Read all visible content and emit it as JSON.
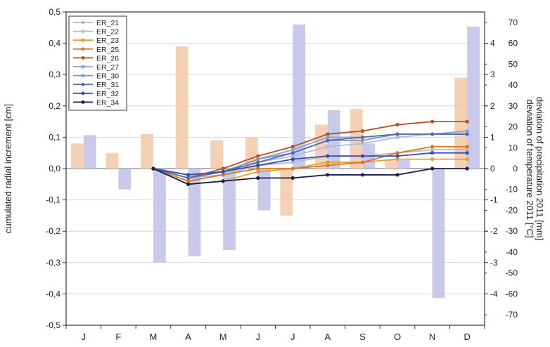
{
  "chart_data": {
    "type": "line",
    "title": "",
    "x_ticks": [
      "J",
      "F",
      "M",
      "A",
      "M",
      "J",
      "J",
      "A",
      "S",
      "O",
      "N",
      "D"
    ],
    "y_left": {
      "label": "cumulated radial increment [cm]",
      "ylim": [
        -0.5,
        0.5
      ],
      "ticks": [
        "-0,5",
        "-0,4",
        "-0,3",
        "-0,2",
        "-0,1",
        "0,0",
        "0,1",
        "0,2",
        "0,3",
        "0,4",
        "0,5"
      ],
      "tick_values": [
        -0.5,
        -0.4,
        -0.3,
        -0.2,
        -0.1,
        0.0,
        0.1,
        0.2,
        0.3,
        0.4,
        0.5
      ]
    },
    "y_right_temperature": {
      "label": "deviation of temperature 2011 [°C]",
      "ylim": [
        -5,
        5
      ],
      "ticks": [
        "-4",
        "-3",
        "-2",
        "-1",
        "0",
        "1",
        "2",
        "3",
        "4"
      ],
      "tick_values": [
        -4,
        -3,
        -2,
        -1,
        0,
        1,
        2,
        3,
        4
      ]
    },
    "y_right_precipitation": {
      "label": "deviation of precipitation 2011 [mm]",
      "ylim": [
        -75,
        75
      ],
      "ticks": [
        "-70",
        "-60",
        "-50",
        "-40",
        "-30",
        "-20",
        "-10",
        "0",
        "10",
        "20",
        "30",
        "40",
        "50",
        "60",
        "70"
      ],
      "tick_values": [
        -70,
        -60,
        -50,
        -40,
        -30,
        -20,
        -10,
        0,
        10,
        20,
        30,
        40,
        50,
        60,
        70
      ]
    },
    "line_x": [
      "M",
      "A",
      "M",
      "J",
      "J",
      "A",
      "S",
      "O",
      "N",
      "D"
    ],
    "series": [
      {
        "name": "ER_21",
        "color": "#b8b8c4",
        "values": [
          0.0,
          -0.03,
          -0.02,
          0.01,
          0.02,
          0.04,
          0.04,
          0.05,
          0.06,
          0.06
        ]
      },
      {
        "name": "ER_22",
        "color": "#a9bde0",
        "values": [
          0.0,
          -0.03,
          -0.01,
          0.02,
          0.04,
          0.07,
          0.08,
          0.1,
          0.11,
          0.11
        ]
      },
      {
        "name": "ER_23",
        "color": "#e0a030",
        "values": [
          0.0,
          -0.05,
          -0.04,
          -0.01,
          0.0,
          0.02,
          0.02,
          0.03,
          0.03,
          0.03
        ]
      },
      {
        "name": "ER_25",
        "color": "#d9781e",
        "values": [
          0.0,
          -0.04,
          -0.02,
          0.0,
          0.0,
          0.01,
          0.02,
          0.05,
          0.07,
          0.07
        ]
      },
      {
        "name": "ER_26",
        "color": "#b8501c",
        "values": [
          0.0,
          -0.03,
          0.0,
          0.04,
          0.07,
          0.11,
          0.12,
          0.14,
          0.15,
          0.15
        ]
      },
      {
        "name": "ER_27",
        "color": "#7fa6e0",
        "values": [
          0.0,
          -0.02,
          -0.01,
          0.03,
          0.06,
          0.1,
          0.1,
          0.11,
          0.11,
          0.12
        ]
      },
      {
        "name": "ER_30",
        "color": "#8094c4",
        "values": [
          0.0,
          -0.02,
          -0.01,
          0.03,
          0.05,
          0.09,
          0.09,
          0.11,
          0.11,
          0.11
        ]
      },
      {
        "name": "ER_31",
        "color": "#5a6aa8",
        "values": [
          0.0,
          -0.03,
          -0.01,
          0.02,
          0.05,
          0.09,
          0.1,
          0.11,
          0.11,
          0.11
        ]
      },
      {
        "name": "ER_32",
        "color": "#3050b0",
        "values": [
          0.0,
          -0.02,
          -0.01,
          0.01,
          0.03,
          0.04,
          0.04,
          0.04,
          0.05,
          0.05
        ]
      },
      {
        "name": "ER_34",
        "color": "#1c1c50",
        "values": [
          0.0,
          -0.05,
          -0.04,
          -0.03,
          -0.03,
          -0.02,
          -0.02,
          -0.02,
          0.0,
          0.0
        ]
      }
    ],
    "temperature_bars": {
      "color": "#f3c8a8",
      "values_degC": [
        0.8,
        0.5,
        1.1,
        3.9,
        0.9,
        1.0,
        -1.5,
        1.4,
        1.9,
        0.3,
        0.0,
        2.9
      ]
    },
    "precipitation_bars": {
      "color": "#c0c0e8",
      "values_mm": [
        16,
        -10,
        -45,
        -42,
        -39,
        -20,
        69,
        28,
        12,
        4,
        -62,
        68
      ]
    },
    "legend_position": "top-left",
    "grid": "horizontal"
  }
}
